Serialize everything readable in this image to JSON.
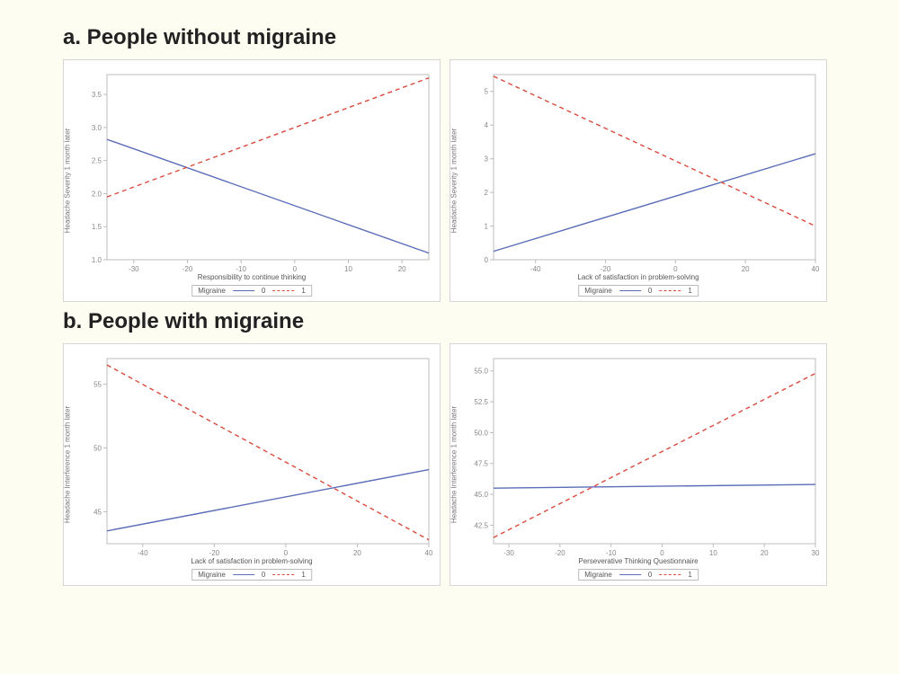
{
  "background_color": "#fefdf2",
  "panel_background": "#ffffff",
  "panel_border_color": "#d6d6d6",
  "plot_border_color": "#bcbcbc",
  "tick_color": "#bcbcbc",
  "tick_label_color": "#888888",
  "axis_label_color": "#555555",
  "tick_label_fontsize": 8,
  "axis_label_fontsize": 8,
  "title_fontsize": 24,
  "title_weight": 700,
  "line_width": 1.4,
  "series_styles": {
    "s0": {
      "color": "#5a6db8",
      "dash": "none",
      "label": "0"
    },
    "s1": {
      "color": "#d94a3d",
      "dash": "5,4",
      "label": "1"
    }
  },
  "legend_label": "Migraine",
  "sections": [
    {
      "title": "a. People without migraine",
      "panels": [
        {
          "type": "line",
          "ylabel": "Headache Severity 1 month later",
          "xlabel": "Responsibility to continue thinking",
          "xlim": [
            -35,
            25
          ],
          "ylim": [
            1.0,
            3.8
          ],
          "xticks": [
            -30,
            -20,
            -10,
            0,
            10,
            20
          ],
          "yticks": [
            1.0,
            1.5,
            2.0,
            2.5,
            3.0,
            3.5
          ],
          "ytick_fmt": "dec1",
          "series": [
            {
              "style": "s0",
              "points": [
                [
                  -35,
                  2.82
                ],
                [
                  25,
                  1.1
                ]
              ]
            },
            {
              "style": "s1",
              "points": [
                [
                  -35,
                  1.95
                ],
                [
                  25,
                  3.75
                ]
              ]
            }
          ]
        },
        {
          "type": "line",
          "ylabel": "Headache Severity 1 month later",
          "xlabel": "Lack of satisfaction in problem-solving",
          "xlim": [
            -52,
            40
          ],
          "ylim": [
            0,
            5.5
          ],
          "xticks": [
            -40,
            -20,
            0,
            20,
            40
          ],
          "yticks": [
            0,
            1,
            2,
            3,
            4,
            5
          ],
          "ytick_fmt": "int",
          "series": [
            {
              "style": "s0",
              "points": [
                [
                  -52,
                  0.25
                ],
                [
                  40,
                  3.15
                ]
              ]
            },
            {
              "style": "s1",
              "points": [
                [
                  -52,
                  5.45
                ],
                [
                  40,
                  1.0
                ]
              ]
            }
          ]
        }
      ]
    },
    {
      "title": "b. People with migraine",
      "panels": [
        {
          "type": "line",
          "ylabel": "Headache Interference 1 month later",
          "xlabel": "Lack of satisfaction in problem-solving",
          "xlim": [
            -50,
            40
          ],
          "ylim": [
            42.5,
            57
          ],
          "xticks": [
            -40,
            -20,
            0,
            20,
            40
          ],
          "yticks": [
            45,
            50,
            55
          ],
          "ytick_fmt": "int",
          "series": [
            {
              "style": "s0",
              "points": [
                [
                  -50,
                  43.5
                ],
                [
                  40,
                  48.3
                ]
              ]
            },
            {
              "style": "s1",
              "points": [
                [
                  -50,
                  56.5
                ],
                [
                  40,
                  42.8
                ]
              ]
            }
          ]
        },
        {
          "type": "line",
          "ylabel": "Headache Interference 1 month later",
          "xlabel": "Perseverative Thinking Questionnaire",
          "xlim": [
            -33,
            30
          ],
          "ylim": [
            41.0,
            56.0
          ],
          "xticks": [
            -30,
            -20,
            -10,
            0,
            10,
            20,
            30
          ],
          "yticks": [
            42.5,
            45.0,
            47.5,
            50.0,
            52.5,
            55.0
          ],
          "ytick_fmt": "dec1",
          "series": [
            {
              "style": "s0",
              "points": [
                [
                  -33,
                  45.5
                ],
                [
                  30,
                  45.8
                ]
              ]
            },
            {
              "style": "s1",
              "points": [
                [
                  -33,
                  41.5
                ],
                [
                  30,
                  54.8
                ]
              ]
            }
          ]
        }
      ]
    }
  ]
}
